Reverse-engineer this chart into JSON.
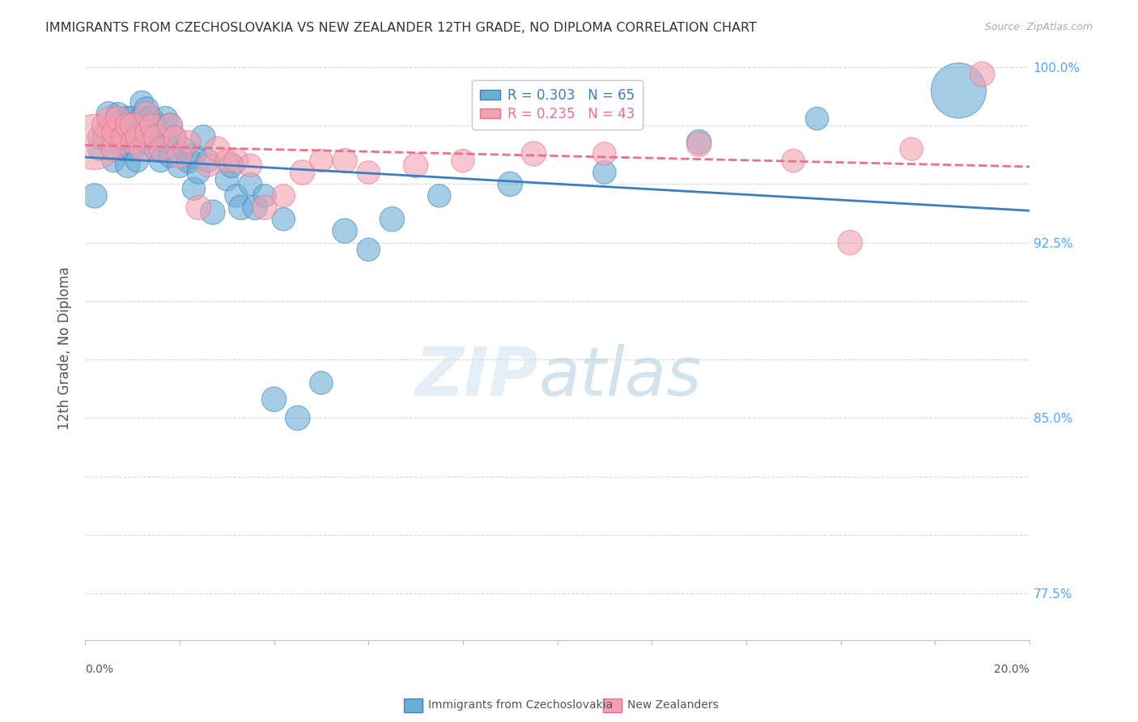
{
  "title": "IMMIGRANTS FROM CZECHOSLOVAKIA VS NEW ZEALANDER 12TH GRADE, NO DIPLOMA CORRELATION CHART",
  "source": "Source: ZipAtlas.com",
  "ylabel": "12th Grade, No Diploma",
  "legend_blue_r": "R = 0.303",
  "legend_blue_n": "N = 65",
  "legend_pink_r": "R = 0.235",
  "legend_pink_n": "N = 43",
  "legend_label_blue": "Immigrants from Czechoslovakia",
  "legend_label_pink": "New Zealanders",
  "blue_color": "#6aaed6",
  "pink_color": "#f4a0b0",
  "blue_line_color": "#3a7fbf",
  "pink_line_color": "#e87090",
  "axis_color": "#c0c0c0",
  "right_axis_color": "#4da6ff",
  "watermark_zip": "ZIP",
  "watermark_atlas": "atlas",
  "blue_scatter_x": [
    0.002,
    0.003,
    0.004,
    0.005,
    0.005,
    0.006,
    0.006,
    0.007,
    0.007,
    0.008,
    0.008,
    0.009,
    0.009,
    0.009,
    0.01,
    0.01,
    0.01,
    0.011,
    0.011,
    0.012,
    0.012,
    0.012,
    0.013,
    0.013,
    0.013,
    0.014,
    0.014,
    0.015,
    0.015,
    0.016,
    0.016,
    0.017,
    0.017,
    0.018,
    0.018,
    0.019,
    0.02,
    0.021,
    0.022,
    0.023,
    0.023,
    0.024,
    0.025,
    0.026,
    0.027,
    0.03,
    0.031,
    0.032,
    0.033,
    0.035,
    0.036,
    0.038,
    0.04,
    0.042,
    0.045,
    0.05,
    0.055,
    0.06,
    0.065,
    0.075,
    0.09,
    0.11,
    0.13,
    0.155,
    0.185
  ],
  "blue_scatter_y": [
    0.945,
    0.965,
    0.97,
    0.975,
    0.98,
    0.96,
    0.975,
    0.97,
    0.98,
    0.965,
    0.975,
    0.958,
    0.97,
    0.978,
    0.965,
    0.972,
    0.978,
    0.96,
    0.975,
    0.97,
    0.978,
    0.985,
    0.968,
    0.975,
    0.982,
    0.972,
    0.978,
    0.965,
    0.975,
    0.96,
    0.972,
    0.968,
    0.978,
    0.962,
    0.975,
    0.97,
    0.958,
    0.965,
    0.96,
    0.948,
    0.962,
    0.955,
    0.97,
    0.96,
    0.938,
    0.952,
    0.958,
    0.945,
    0.94,
    0.95,
    0.94,
    0.945,
    0.858,
    0.935,
    0.85,
    0.865,
    0.93,
    0.922,
    0.935,
    0.945,
    0.95,
    0.955,
    0.968,
    0.978,
    0.99
  ],
  "blue_scatter_size": [
    40,
    35,
    40,
    35,
    40,
    35,
    40,
    40,
    35,
    40,
    35,
    40,
    35,
    40,
    40,
    35,
    40,
    35,
    40,
    35,
    40,
    35,
    40,
    35,
    40,
    35,
    40,
    35,
    40,
    35,
    40,
    35,
    40,
    35,
    40,
    35,
    40,
    35,
    40,
    35,
    40,
    35,
    40,
    35,
    40,
    35,
    40,
    35,
    40,
    35,
    40,
    35,
    40,
    35,
    40,
    35,
    40,
    35,
    40,
    35,
    40,
    35,
    40,
    35,
    200
  ],
  "pink_scatter_x": [
    0.002,
    0.003,
    0.004,
    0.005,
    0.006,
    0.006,
    0.007,
    0.008,
    0.009,
    0.01,
    0.01,
    0.011,
    0.012,
    0.013,
    0.013,
    0.014,
    0.015,
    0.016,
    0.018,
    0.019,
    0.02,
    0.022,
    0.024,
    0.026,
    0.028,
    0.03,
    0.032,
    0.035,
    0.038,
    0.042,
    0.046,
    0.05,
    0.055,
    0.06,
    0.07,
    0.08,
    0.095,
    0.11,
    0.13,
    0.15,
    0.162,
    0.175,
    0.19
  ],
  "pink_scatter_y": [
    0.968,
    0.97,
    0.975,
    0.978,
    0.965,
    0.972,
    0.978,
    0.97,
    0.975,
    0.968,
    0.975,
    0.97,
    0.965,
    0.972,
    0.98,
    0.975,
    0.97,
    0.965,
    0.975,
    0.97,
    0.962,
    0.968,
    0.94,
    0.958,
    0.965,
    0.96,
    0.96,
    0.958,
    0.94,
    0.945,
    0.955,
    0.96,
    0.96,
    0.955,
    0.958,
    0.96,
    0.963,
    0.963,
    0.967,
    0.96,
    0.925,
    0.965,
    0.997
  ],
  "pink_scatter_size": [
    200,
    35,
    40,
    35,
    40,
    35,
    40,
    35,
    40,
    35,
    40,
    35,
    40,
    35,
    40,
    35,
    40,
    35,
    40,
    35,
    40,
    35,
    40,
    35,
    40,
    35,
    40,
    35,
    40,
    35,
    40,
    35,
    40,
    35,
    40,
    35,
    40,
    35,
    40,
    35,
    40,
    35,
    40
  ]
}
